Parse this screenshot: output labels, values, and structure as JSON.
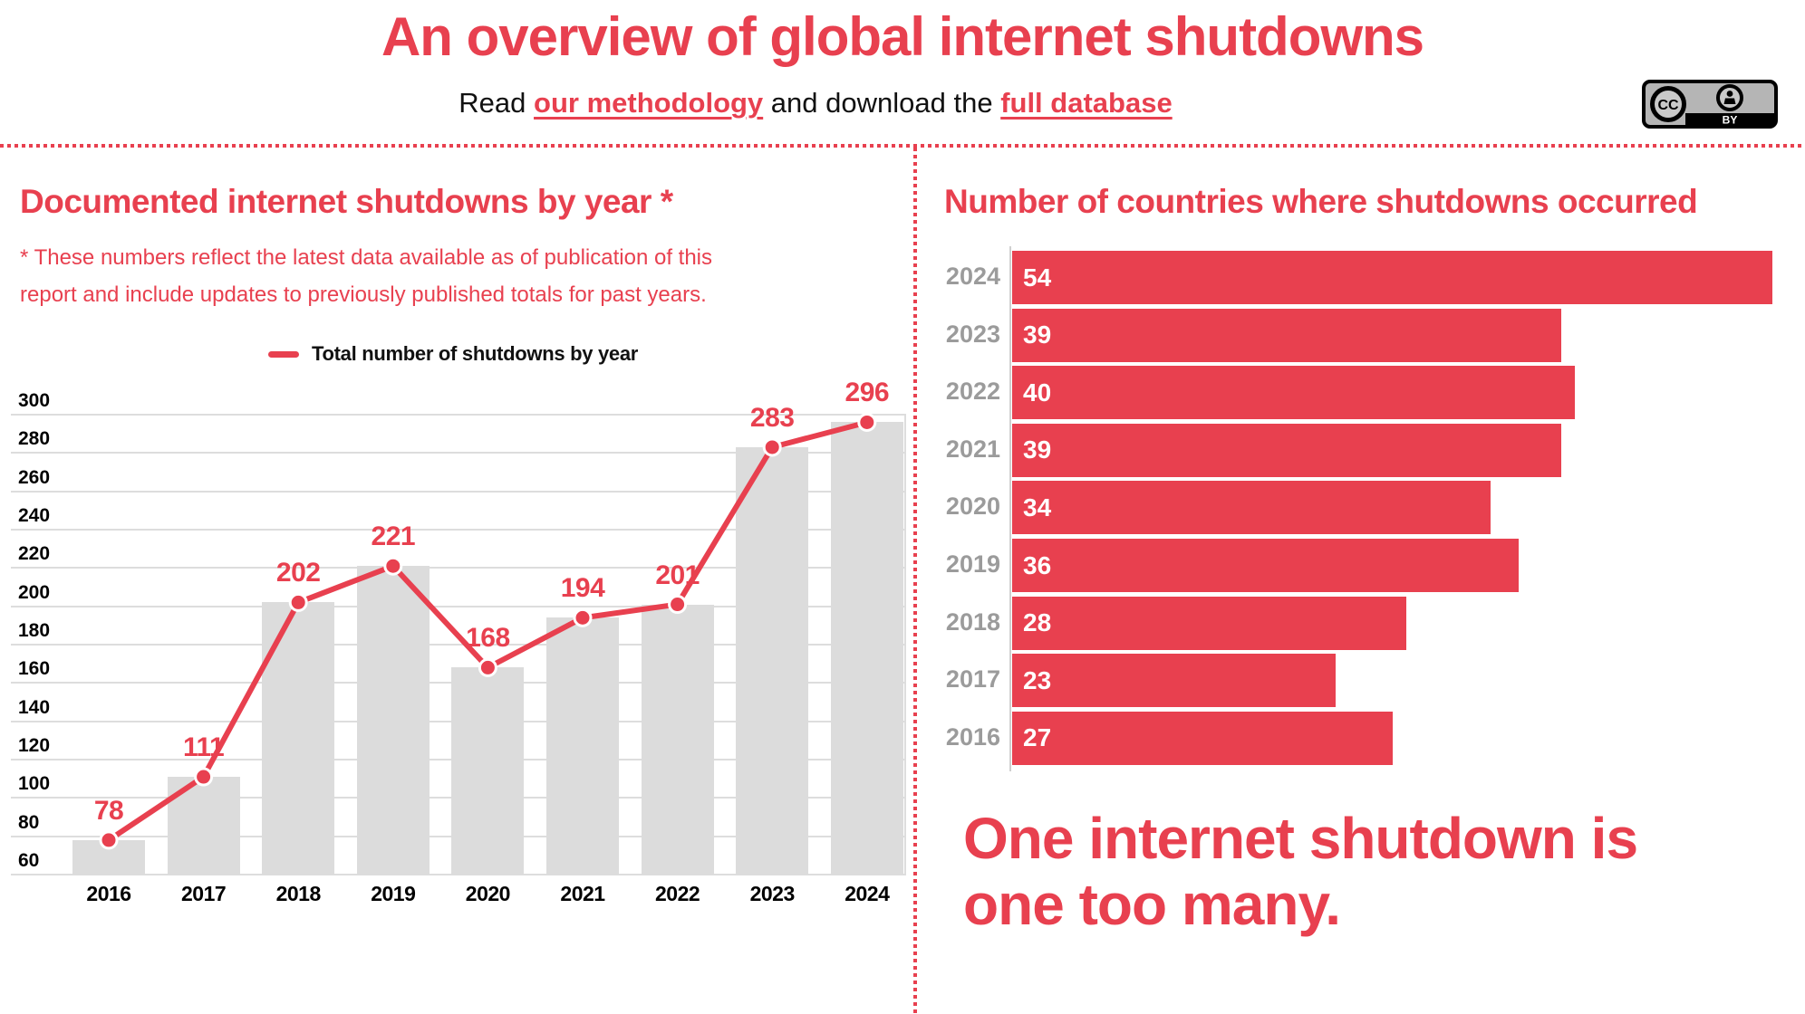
{
  "colors": {
    "red": "#e8404f",
    "bar_grey": "#dcdcdc",
    "grid": "#dddddd",
    "year_label_grey": "#9b9b9b",
    "text_black": "#111111"
  },
  "header": {
    "title": "An overview of global internet shutdowns",
    "subtitle": {
      "prefix": "Read ",
      "methodology_link": "our methodology",
      "middle": " and download the ",
      "database_link": "full database"
    },
    "license": {
      "cc_text": "CC",
      "by_text": "BY"
    }
  },
  "left_panel": {
    "heading": "Documented internet shutdowns by year *",
    "disclaimer": [
      "* These numbers reflect the latest data available as of publication of this",
      "report and include updates to previously published totals for past years."
    ],
    "legend_label": "Total number of shutdowns by year"
  },
  "right_panel": {
    "heading": "Number of countries where shutdowns occurred",
    "tagline": [
      "One internet shutdown is",
      "one too many."
    ]
  },
  "chart_data": [
    {
      "id": "shutdowns_by_year",
      "type": "line",
      "title": "Documented internet shutdowns by year *",
      "legend": [
        "Total number of shutdowns by year"
      ],
      "legend_position": "top",
      "categories": [
        "2016",
        "2017",
        "2018",
        "2019",
        "2020",
        "2021",
        "2022",
        "2023",
        "2024"
      ],
      "values": [
        78,
        111,
        202,
        221,
        168,
        194,
        201,
        283,
        296
      ],
      "ylim": [
        60,
        300
      ],
      "ytick_step": 20,
      "grid": true,
      "style_note": "red line with round markers and red value labels; matching grey background columns"
    },
    {
      "id": "countries_where_shutdowns_occurred",
      "type": "bar",
      "orientation": "horizontal",
      "title": "Number of countries where shutdowns occurred",
      "categories": [
        "2024",
        "2023",
        "2022",
        "2021",
        "2020",
        "2019",
        "2018",
        "2017",
        "2016"
      ],
      "values": [
        54,
        39,
        40,
        39,
        34,
        36,
        28,
        23,
        27
      ],
      "xlim": [
        0,
        54
      ],
      "grid": false,
      "style_note": "red bars, white value labels inside-left, grey year labels"
    }
  ]
}
